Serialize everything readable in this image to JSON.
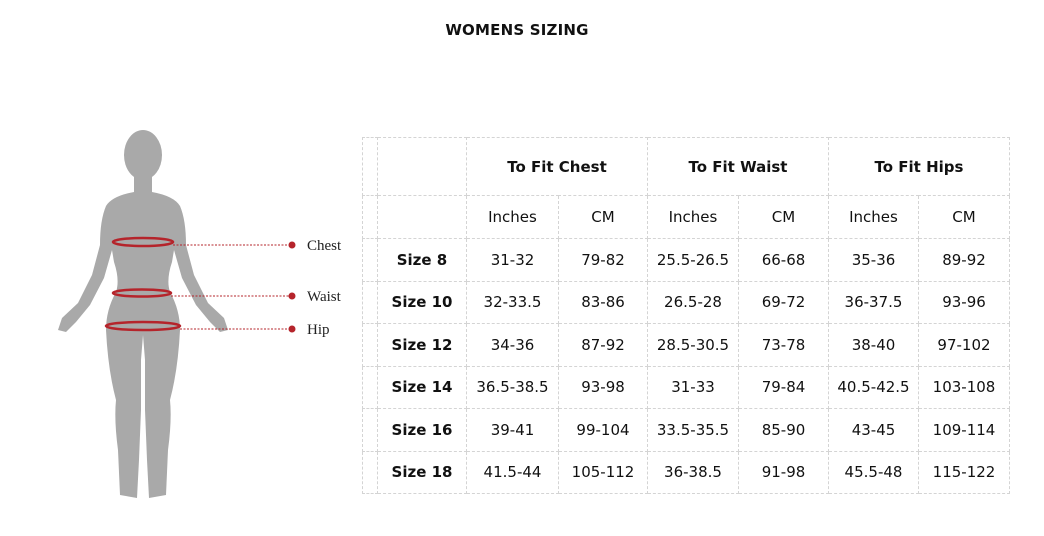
{
  "title": "WOMENS SIZING",
  "figure": {
    "labels": [
      "Chest",
      "Waist",
      "Hip"
    ],
    "silhouette_color": "#a9a9a9",
    "accent_color": "#b5242b"
  },
  "table": {
    "groups": [
      "To Fit Chest",
      "To Fit Waist",
      "To Fit Hips"
    ],
    "subheaders": [
      "Inches",
      "CM",
      "Inches",
      "CM",
      "Inches",
      "CM"
    ],
    "rows": [
      {
        "size": "Size 8",
        "values": [
          "31-32",
          "79-82",
          "25.5-26.5",
          "66-68",
          "35-36",
          "89-92"
        ]
      },
      {
        "size": "Size 10",
        "values": [
          "32-33.5",
          "83-86",
          "26.5-28",
          "69-72",
          "36-37.5",
          "93-96"
        ]
      },
      {
        "size": "Size 12",
        "values": [
          "34-36",
          "87-92",
          "28.5-30.5",
          "73-78",
          "38-40",
          "97-102"
        ]
      },
      {
        "size": "Size 14",
        "values": [
          "36.5-38.5",
          "93-98",
          "31-33",
          "79-84",
          "40.5-42.5",
          "103-108"
        ]
      },
      {
        "size": "Size 16",
        "values": [
          "39-41",
          "99-104",
          "33.5-35.5",
          "85-90",
          "43-45",
          "109-114"
        ]
      },
      {
        "size": "Size 18",
        "values": [
          "41.5-44",
          "105-112",
          "36-38.5",
          "91-98",
          "45.5-48",
          "115-122"
        ]
      }
    ]
  }
}
